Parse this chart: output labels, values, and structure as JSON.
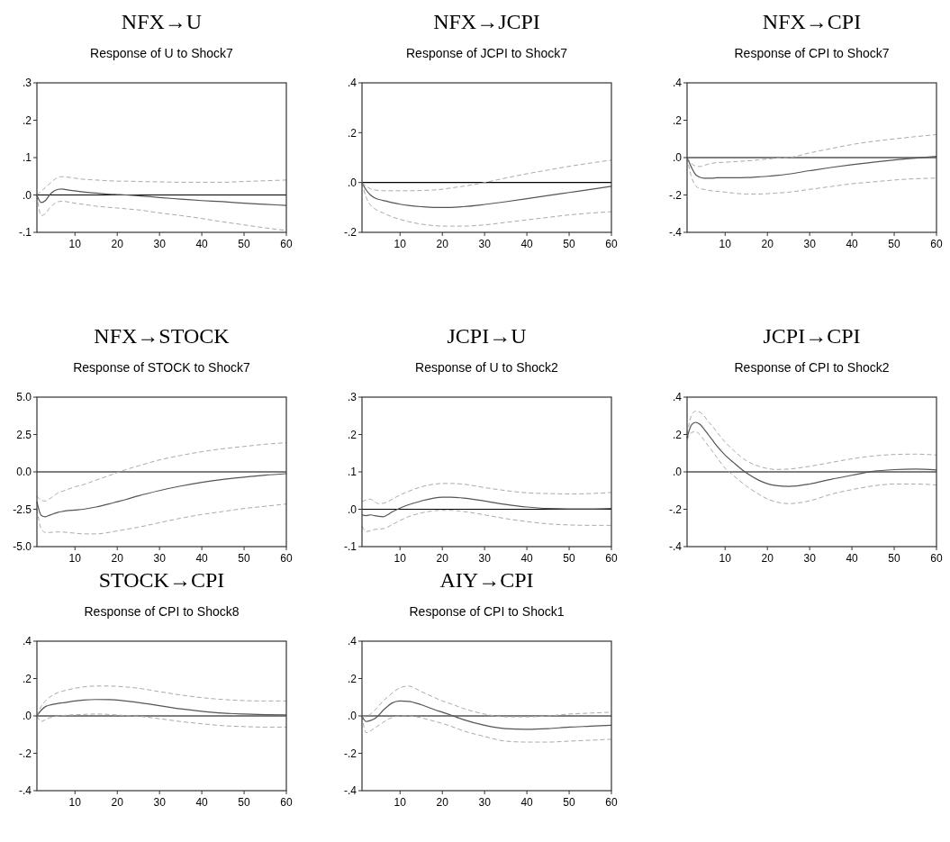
{
  "chart_data": [
    {
      "type": "line",
      "title": "NFX→U",
      "subtitle": "Response of U to Shock7",
      "x": [
        1,
        2,
        3,
        4,
        5,
        6,
        7,
        8,
        10,
        12,
        15,
        18,
        20,
        22,
        25,
        30,
        35,
        40,
        45,
        50,
        55,
        60
      ],
      "xlim": [
        1,
        60
      ],
      "xticks": [
        10,
        20,
        30,
        40,
        50,
        60
      ],
      "ylim": [
        -0.1,
        0.3
      ],
      "yticks": [
        {
          "value": -0.1,
          "label": "-.1"
        },
        {
          "value": 0,
          "label": ".0"
        },
        {
          "value": 0.1,
          "label": ".1"
        },
        {
          "value": 0.2,
          "label": ".2"
        },
        {
          "value": 0.3,
          "label": ".3"
        }
      ],
      "ref_lines": [
        {
          "axis": "y",
          "value": 0,
          "color": "#000000"
        }
      ],
      "series": [
        {
          "color": "#555555",
          "line_style": "solid",
          "values": [
            0,
            -0.02,
            -0.015,
            0,
            0.01,
            0.015,
            0.016,
            0.014,
            0.011,
            0.008,
            0.005,
            0.002,
            0.001,
            0,
            -0.002,
            -0.007,
            -0.011,
            -0.015,
            -0.018,
            -0.022,
            -0.025,
            -0.028
          ]
        },
        {
          "color": "#aaaaaa",
          "line_style": "dashed",
          "values": [
            0,
            0.01,
            0.02,
            0.03,
            0.04,
            0.047,
            0.049,
            0.048,
            0.045,
            0.042,
            0.04,
            0.038,
            0.037,
            0.037,
            0.036,
            0.035,
            0.034,
            0.034,
            0.034,
            0.036,
            0.038,
            0.04
          ]
        },
        {
          "color": "#aaaaaa",
          "line_style": "dashed",
          "values": [
            0,
            -0.055,
            -0.05,
            -0.035,
            -0.025,
            -0.018,
            -0.017,
            -0.018,
            -0.022,
            -0.025,
            -0.03,
            -0.033,
            -0.035,
            -0.037,
            -0.04,
            -0.048,
            -0.055,
            -0.063,
            -0.072,
            -0.08,
            -0.088,
            -0.095
          ]
        }
      ]
    },
    {
      "type": "line",
      "title": "NFX→JCPI",
      "subtitle": "Response of JCPI to Shock7",
      "x": [
        1,
        2,
        3,
        4,
        5,
        6,
        7,
        8,
        10,
        12,
        15,
        18,
        20,
        22,
        25,
        30,
        35,
        40,
        45,
        50,
        55,
        60
      ],
      "xlim": [
        1,
        60
      ],
      "xticks": [
        10,
        20,
        30,
        40,
        50,
        60
      ],
      "ylim": [
        -0.2,
        0.4
      ],
      "yticks": [
        {
          "value": -0.2,
          "label": "-.2"
        },
        {
          "value": 0,
          "label": ".0"
        },
        {
          "value": 0.2,
          "label": ".2"
        },
        {
          "value": 0.4,
          "label": ".4"
        }
      ],
      "ref_lines": [
        {
          "axis": "y",
          "value": 0,
          "color": "#000000"
        }
      ],
      "series": [
        {
          "color": "#555555",
          "line_style": "solid",
          "values": [
            0,
            -0.03,
            -0.05,
            -0.062,
            -0.068,
            -0.072,
            -0.076,
            -0.08,
            -0.087,
            -0.092,
            -0.097,
            -0.1,
            -0.1,
            -0.1,
            -0.097,
            -0.088,
            -0.077,
            -0.065,
            -0.052,
            -0.04,
            -0.028,
            -0.015
          ]
        },
        {
          "color": "#aaaaaa",
          "line_style": "dashed",
          "values": [
            0,
            -0.015,
            -0.025,
            -0.03,
            -0.032,
            -0.033,
            -0.033,
            -0.033,
            -0.033,
            -0.033,
            -0.032,
            -0.03,
            -0.027,
            -0.022,
            -0.015,
            0,
            0.018,
            0.035,
            0.05,
            0.065,
            0.078,
            0.09
          ]
        },
        {
          "color": "#aaaaaa",
          "line_style": "dashed",
          "values": [
            0,
            -0.06,
            -0.09,
            -0.105,
            -0.115,
            -0.122,
            -0.13,
            -0.137,
            -0.148,
            -0.157,
            -0.167,
            -0.173,
            -0.175,
            -0.175,
            -0.175,
            -0.17,
            -0.16,
            -0.15,
            -0.14,
            -0.13,
            -0.123,
            -0.117
          ]
        }
      ]
    },
    {
      "type": "line",
      "title": "NFX→CPI",
      "subtitle": "Response of CPI to Shock7",
      "x": [
        1,
        2,
        3,
        4,
        5,
        6,
        7,
        8,
        10,
        12,
        15,
        18,
        20,
        22,
        25,
        30,
        35,
        40,
        45,
        50,
        55,
        60
      ],
      "xlim": [
        1,
        60
      ],
      "xticks": [
        10,
        20,
        30,
        40,
        50,
        60
      ],
      "ylim": [
        -0.4,
        0.4
      ],
      "yticks": [
        {
          "value": -0.4,
          "label": "-.4"
        },
        {
          "value": -0.2,
          "label": "-.2"
        },
        {
          "value": 0,
          "label": ".0"
        },
        {
          "value": 0.2,
          "label": ".2"
        },
        {
          "value": 0.4,
          "label": ".4"
        }
      ],
      "ref_lines": [
        {
          "axis": "y",
          "value": 0,
          "color": "#000000"
        }
      ],
      "series": [
        {
          "color": "#555555",
          "line_style": "solid",
          "values": [
            0,
            -0.05,
            -0.09,
            -0.105,
            -0.11,
            -0.11,
            -0.11,
            -0.108,
            -0.108,
            -0.108,
            -0.107,
            -0.103,
            -0.1,
            -0.096,
            -0.088,
            -0.07,
            -0.053,
            -0.038,
            -0.025,
            -0.013,
            -0.003,
            0.007
          ]
        },
        {
          "color": "#aaaaaa",
          "line_style": "dashed",
          "values": [
            0,
            -0.03,
            -0.045,
            -0.048,
            -0.042,
            -0.035,
            -0.03,
            -0.027,
            -0.025,
            -0.022,
            -0.018,
            -0.012,
            -0.008,
            -0.003,
            0,
            0.025,
            0.048,
            0.07,
            0.087,
            0.1,
            0.112,
            0.123
          ]
        },
        {
          "color": "#aaaaaa",
          "line_style": "dashed",
          "values": [
            0,
            -0.1,
            -0.15,
            -0.165,
            -0.17,
            -0.175,
            -0.178,
            -0.18,
            -0.185,
            -0.19,
            -0.195,
            -0.195,
            -0.193,
            -0.19,
            -0.185,
            -0.17,
            -0.155,
            -0.14,
            -0.13,
            -0.12,
            -0.113,
            -0.11
          ]
        }
      ]
    },
    {
      "type": "line",
      "title": "NFX→STOCK",
      "subtitle": "Response of STOCK to Shock7",
      "x": [
        1,
        2,
        3,
        4,
        5,
        6,
        7,
        8,
        10,
        12,
        15,
        18,
        20,
        22,
        25,
        30,
        35,
        40,
        45,
        50,
        55,
        60
      ],
      "xlim": [
        1,
        60
      ],
      "xticks": [
        10,
        20,
        30,
        40,
        50,
        60
      ],
      "ylim": [
        -5,
        5
      ],
      "yticks": [
        {
          "value": -5,
          "label": "-5.0"
        },
        {
          "value": -2.5,
          "label": "-2.5"
        },
        {
          "value": 0,
          "label": "0.0"
        },
        {
          "value": 2.5,
          "label": "2.5"
        },
        {
          "value": 5,
          "label": "5.0"
        }
      ],
      "ref_lines": [
        {
          "axis": "y",
          "value": 0,
          "color": "#000000"
        }
      ],
      "series": [
        {
          "color": "#555555",
          "line_style": "solid",
          "values": [
            -2.0,
            -2.9,
            -3.0,
            -2.9,
            -2.8,
            -2.7,
            -2.65,
            -2.6,
            -2.55,
            -2.5,
            -2.35,
            -2.15,
            -2.0,
            -1.85,
            -1.6,
            -1.25,
            -0.95,
            -0.7,
            -0.5,
            -0.35,
            -0.22,
            -0.12
          ]
        },
        {
          "color": "#aaaaaa",
          "line_style": "dashed",
          "values": [
            -1.6,
            -1.9,
            -1.95,
            -1.8,
            -1.6,
            -1.4,
            -1.3,
            -1.2,
            -1.0,
            -0.85,
            -0.55,
            -0.25,
            -0.05,
            0.15,
            0.4,
            0.8,
            1.1,
            1.35,
            1.55,
            1.7,
            1.85,
            1.95
          ]
        },
        {
          "color": "#aaaaaa",
          "line_style": "dashed",
          "values": [
            -2.5,
            -3.8,
            -4.05,
            -4.05,
            -4.03,
            -4.02,
            -4.02,
            -4.05,
            -4.1,
            -4.15,
            -4.15,
            -4.05,
            -3.95,
            -3.85,
            -3.7,
            -3.4,
            -3.1,
            -2.85,
            -2.65,
            -2.45,
            -2.3,
            -2.15
          ]
        }
      ]
    },
    {
      "type": "line",
      "title": "JCPI→U",
      "subtitle": "Response of U to Shock2",
      "x": [
        1,
        2,
        3,
        4,
        5,
        6,
        7,
        8,
        10,
        12,
        15,
        18,
        20,
        22,
        25,
        30,
        35,
        40,
        45,
        50,
        55,
        60
      ],
      "xlim": [
        1,
        60
      ],
      "xticks": [
        10,
        20,
        30,
        40,
        50,
        60
      ],
      "ylim": [
        -0.1,
        0.3
      ],
      "yticks": [
        {
          "value": -0.1,
          "label": "-.1"
        },
        {
          "value": 0,
          "label": ".0"
        },
        {
          "value": 0.1,
          "label": ".1"
        },
        {
          "value": 0.2,
          "label": ".2"
        },
        {
          "value": 0.3,
          "label": ".3"
        }
      ],
      "ref_lines": [
        {
          "axis": "y",
          "value": 0,
          "color": "#000000"
        }
      ],
      "series": [
        {
          "color": "#555555",
          "line_style": "solid",
          "values": [
            -0.015,
            -0.017,
            -0.015,
            -0.017,
            -0.019,
            -0.02,
            -0.015,
            -0.008,
            0.003,
            0.012,
            0.022,
            0.03,
            0.032,
            0.032,
            0.03,
            0.022,
            0.013,
            0.006,
            0.002,
            0.001,
            0.001,
            0.002
          ]
        },
        {
          "color": "#aaaaaa",
          "line_style": "dashed",
          "values": [
            0.02,
            0.025,
            0.027,
            0.02,
            0.015,
            0.016,
            0.02,
            0.026,
            0.038,
            0.048,
            0.06,
            0.067,
            0.069,
            0.069,
            0.067,
            0.058,
            0.05,
            0.044,
            0.042,
            0.041,
            0.042,
            0.045
          ]
        },
        {
          "color": "#aaaaaa",
          "line_style": "dashed",
          "values": [
            -0.045,
            -0.06,
            -0.057,
            -0.054,
            -0.053,
            -0.052,
            -0.048,
            -0.042,
            -0.03,
            -0.02,
            -0.01,
            -0.004,
            -0.003,
            -0.003,
            -0.006,
            -0.015,
            -0.025,
            -0.033,
            -0.039,
            -0.042,
            -0.043,
            -0.043
          ]
        }
      ]
    },
    {
      "type": "line",
      "title": "JCPI→CPI",
      "subtitle": "Response of CPI to Shock2",
      "x": [
        1,
        2,
        3,
        4,
        5,
        6,
        7,
        8,
        10,
        12,
        15,
        18,
        20,
        22,
        25,
        30,
        35,
        40,
        45,
        50,
        55,
        60
      ],
      "xlim": [
        1,
        60
      ],
      "xticks": [
        10,
        20,
        30,
        40,
        50,
        60
      ],
      "ylim": [
        -0.4,
        0.4
      ],
      "yticks": [
        {
          "value": -0.4,
          "label": "-.4"
        },
        {
          "value": -0.2,
          "label": "-.2"
        },
        {
          "value": 0,
          "label": ".0"
        },
        {
          "value": 0.2,
          "label": ".2"
        },
        {
          "value": 0.4,
          "label": ".4"
        }
      ],
      "ref_lines": [
        {
          "axis": "y",
          "value": 0,
          "color": "#000000"
        }
      ],
      "series": [
        {
          "color": "#555555",
          "line_style": "solid",
          "values": [
            0.18,
            0.25,
            0.265,
            0.255,
            0.23,
            0.2,
            0.17,
            0.14,
            0.09,
            0.05,
            -0.005,
            -0.045,
            -0.063,
            -0.073,
            -0.078,
            -0.065,
            -0.04,
            -0.018,
            0.003,
            0.012,
            0.015,
            0.01
          ]
        },
        {
          "color": "#aaaaaa",
          "line_style": "dashed",
          "values": [
            0.2,
            0.3,
            0.325,
            0.32,
            0.3,
            0.27,
            0.245,
            0.215,
            0.16,
            0.115,
            0.06,
            0.03,
            0.018,
            0.013,
            0.015,
            0.03,
            0.05,
            0.07,
            0.085,
            0.093,
            0.095,
            0.09
          ]
        },
        {
          "color": "#aaaaaa",
          "line_style": "dashed",
          "values": [
            0.17,
            0.21,
            0.215,
            0.2,
            0.17,
            0.14,
            0.11,
            0.08,
            0.02,
            -0.02,
            -0.075,
            -0.12,
            -0.145,
            -0.16,
            -0.17,
            -0.155,
            -0.12,
            -0.095,
            -0.075,
            -0.065,
            -0.065,
            -0.07
          ]
        }
      ]
    },
    {
      "type": "line",
      "title": "STOCK→CPI",
      "subtitle": "Response of CPI to Shock8",
      "x": [
        1,
        2,
        3,
        4,
        5,
        6,
        7,
        8,
        10,
        12,
        15,
        18,
        20,
        22,
        25,
        30,
        35,
        40,
        45,
        50,
        55,
        60
      ],
      "xlim": [
        1,
        60
      ],
      "xticks": [
        10,
        20,
        30,
        40,
        50,
        60
      ],
      "ylim": [
        -0.4,
        0.4
      ],
      "yticks": [
        {
          "value": -0.4,
          "label": "-.4"
        },
        {
          "value": -0.2,
          "label": "-.2"
        },
        {
          "value": 0,
          "label": ".0"
        },
        {
          "value": 0.2,
          "label": ".2"
        },
        {
          "value": 0.4,
          "label": ".4"
        }
      ],
      "ref_lines": [
        {
          "axis": "y",
          "value": 0,
          "color": "#000000"
        }
      ],
      "series": [
        {
          "color": "#555555",
          "line_style": "solid",
          "values": [
            0,
            0.03,
            0.05,
            0.058,
            0.063,
            0.067,
            0.07,
            0.073,
            0.08,
            0.085,
            0.088,
            0.087,
            0.085,
            0.08,
            0.072,
            0.055,
            0.038,
            0.025,
            0.015,
            0.01,
            0.007,
            0.005
          ]
        },
        {
          "color": "#aaaaaa",
          "line_style": "dashed",
          "values": [
            0,
            0.05,
            0.08,
            0.1,
            0.115,
            0.125,
            0.132,
            0.138,
            0.148,
            0.155,
            0.16,
            0.16,
            0.158,
            0.155,
            0.148,
            0.13,
            0.112,
            0.098,
            0.088,
            0.082,
            0.08,
            0.08
          ]
        },
        {
          "color": "#aaaaaa",
          "line_style": "dashed",
          "values": [
            0,
            -0.03,
            -0.02,
            -0.01,
            -0.005,
            0,
            0.002,
            0.004,
            0.006,
            0.008,
            0.01,
            0.008,
            0.005,
            0.002,
            -0.002,
            -0.015,
            -0.03,
            -0.042,
            -0.052,
            -0.057,
            -0.06,
            -0.06
          ]
        }
      ]
    },
    {
      "type": "line",
      "title": "AIY→CPI",
      "subtitle": "Response of CPI to Shock1",
      "x": [
        1,
        2,
        3,
        4,
        5,
        6,
        7,
        8,
        10,
        12,
        15,
        18,
        20,
        22,
        25,
        30,
        35,
        40,
        45,
        50,
        55,
        60
      ],
      "xlim": [
        1,
        60
      ],
      "xticks": [
        10,
        20,
        30,
        40,
        50,
        60
      ],
      "ylim": [
        -0.4,
        0.4
      ],
      "yticks": [
        {
          "value": -0.4,
          "label": "-.4"
        },
        {
          "value": -0.2,
          "label": "-.2"
        },
        {
          "value": 0,
          "label": ".0"
        },
        {
          "value": 0.2,
          "label": ".2"
        },
        {
          "value": 0.4,
          "label": ".4"
        }
      ],
      "ref_lines": [
        {
          "axis": "y",
          "value": 0,
          "color": "#000000"
        }
      ],
      "series": [
        {
          "color": "#555555",
          "line_style": "solid",
          "values": [
            0,
            -0.03,
            -0.025,
            -0.015,
            0.005,
            0.03,
            0.05,
            0.068,
            0.08,
            0.078,
            0.06,
            0.035,
            0.02,
            0.005,
            -0.02,
            -0.05,
            -0.068,
            -0.072,
            -0.068,
            -0.06,
            -0.055,
            -0.05
          ]
        },
        {
          "color": "#aaaaaa",
          "line_style": "dashed",
          "values": [
            0,
            -0.005,
            0.01,
            0.03,
            0.055,
            0.08,
            0.1,
            0.12,
            0.15,
            0.16,
            0.13,
            0.1,
            0.08,
            0.065,
            0.04,
            0.01,
            -0.005,
            -0.005,
            0,
            0.01,
            0.015,
            0.02
          ]
        },
        {
          "color": "#aaaaaa",
          "line_style": "dashed",
          "values": [
            0,
            -0.09,
            -0.08,
            -0.065,
            -0.05,
            -0.035,
            -0.02,
            -0.01,
            0,
            0,
            -0.01,
            -0.028,
            -0.04,
            -0.055,
            -0.08,
            -0.11,
            -0.135,
            -0.14,
            -0.14,
            -0.135,
            -0.13,
            -0.125
          ]
        }
      ]
    }
  ]
}
